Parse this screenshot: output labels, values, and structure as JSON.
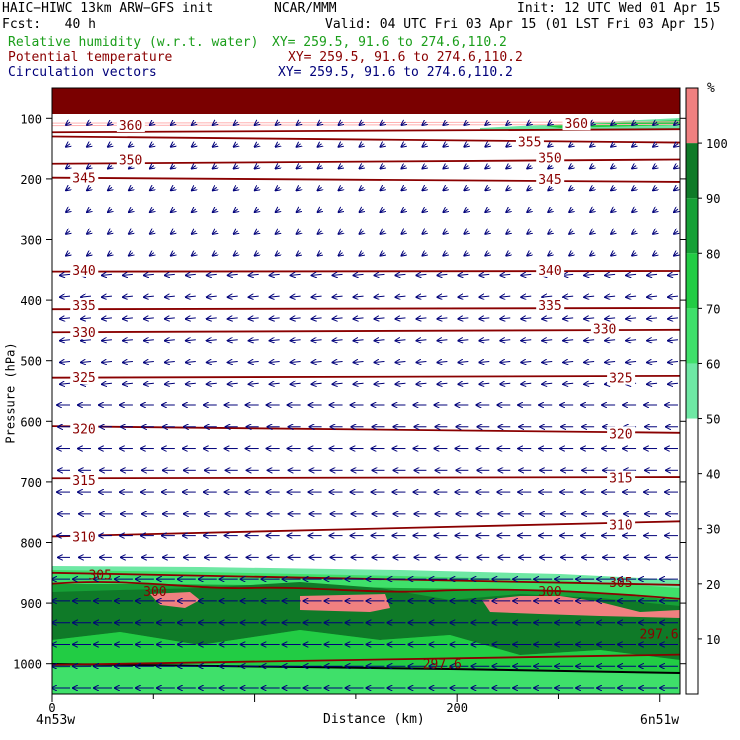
{
  "header": {
    "model": "HAIC−HIWC 13km ARW−GFS init",
    "org": "NCAR/MMM",
    "init": "Init: 12 UTC Wed 01 Apr 15",
    "fcst": "Fcst:   40 h",
    "valid": "Valid: 04 UTC Fri 03 Apr 15 (01 LST Fri 03 Apr 15)"
  },
  "legend": [
    {
      "label": "Relative humidity (w.r.t. water)",
      "xy": "XY= 259.5, 91.6 to 274.6,110.2",
      "color": "#1a9e1a"
    },
    {
      "label": "Potential temperature",
      "xy": "XY= 259.5, 91.6 to 274.6,110.2",
      "color": "#8a0000"
    },
    {
      "label": "Circulation vectors",
      "xy": "XY= 259.5, 91.6 to 274.6,110.2",
      "color": "#00007a"
    }
  ],
  "chart_data": {
    "type": "cross-section",
    "xlabel": "Distance (km)",
    "ylabel": "Pressure (hPa)",
    "x_ticks": [
      {
        "value": 0,
        "label": "0"
      },
      {
        "value": 200,
        "label": "200"
      }
    ],
    "y_ticks": [
      100,
      200,
      300,
      400,
      500,
      600,
      700,
      800,
      900,
      1000
    ],
    "xlim": [
      0,
      310
    ],
    "ylim": [
      1050,
      50
    ],
    "endpoints": {
      "left": "4n53w",
      "right": "6n51w"
    },
    "rh_colorbar": {
      "unit": "%",
      "levels": [
        10,
        20,
        30,
        40,
        50,
        60,
        70,
        80,
        90,
        100
      ],
      "fills": [
        {
          "from": 50,
          "to": 60,
          "color": "#6ee8a4"
        },
        {
          "from": 60,
          "to": 70,
          "color": "#3fe06a"
        },
        {
          "from": 70,
          "to": 80,
          "color": "#22cc44"
        },
        {
          "from": 80,
          "to": 90,
          "color": "#16a036"
        },
        {
          "from": 90,
          "to": 100,
          "color": "#0f7a28"
        },
        {
          "from": 100,
          "to": 110,
          "color": "#f08080"
        }
      ]
    },
    "theta_contours": [
      {
        "label": "360",
        "left": 123,
        "right": 118
      },
      {
        "label": "355",
        "left": 130,
        "right": 140
      },
      {
        "label": "350",
        "left": 175,
        "right": 168
      },
      {
        "label": "345",
        "left": 198,
        "right": 205
      },
      {
        "label": "340",
        "left": 353,
        "right": 352
      },
      {
        "label": "335",
        "left": 415,
        "right": 413
      },
      {
        "label": "330",
        "left": 453,
        "right": 449
      },
      {
        "label": "325",
        "left": 528,
        "right": 525
      },
      {
        "label": "320",
        "left": 608,
        "right": 619
      },
      {
        "label": "315",
        "left": 694,
        "right": 692
      },
      {
        "label": "310",
        "left": 790,
        "right": 765
      },
      {
        "label": "305",
        "left": 850,
        "right": 870
      },
      {
        "label": "300",
        "left": 868,
        "right": 893
      },
      {
        "label": "297.6",
        "left": 1002,
        "right": 985
      }
    ],
    "theta_label_positions": [
      {
        "label": "360",
        "x": 33,
        "p": 111
      },
      {
        "label": "360",
        "x": 253,
        "p": 108
      },
      {
        "label": "355",
        "x": 230,
        "p": 138
      },
      {
        "label": "350",
        "x": 33,
        "p": 168
      },
      {
        "label": "350",
        "x": 240,
        "p": 165
      },
      {
        "label": "345",
        "x": 10,
        "p": 198
      },
      {
        "label": "345",
        "x": 240,
        "p": 200
      },
      {
        "label": "340",
        "x": 10,
        "p": 350
      },
      {
        "label": "340",
        "x": 240,
        "p": 350
      },
      {
        "label": "335",
        "x": 10,
        "p": 408
      },
      {
        "label": "335",
        "x": 240,
        "p": 408
      },
      {
        "label": "330",
        "x": 10,
        "p": 453
      },
      {
        "label": "330",
        "x": 267,
        "p": 447
      },
      {
        "label": "325",
        "x": 10,
        "p": 527
      },
      {
        "label": "325",
        "x": 275,
        "p": 528
      },
      {
        "label": "320",
        "x": 10,
        "p": 612
      },
      {
        "label": "320",
        "x": 275,
        "p": 620
      },
      {
        "label": "315",
        "x": 10,
        "p": 697
      },
      {
        "label": "315",
        "x": 275,
        "p": 693
      },
      {
        "label": "310",
        "x": 10,
        "p": 790
      },
      {
        "label": "310",
        "x": 275,
        "p": 770
      },
      {
        "label": "305",
        "x": 18,
        "p": 853
      },
      {
        "label": "305",
        "x": 275,
        "p": 865
      },
      {
        "label": "300",
        "x": 45,
        "p": 880
      },
      {
        "label": "300",
        "x": 240,
        "p": 880
      },
      {
        "label": "297.6",
        "x": 183,
        "p": 1000
      },
      {
        "label": "297.6",
        "x": 290,
        "p": 950
      }
    ]
  }
}
